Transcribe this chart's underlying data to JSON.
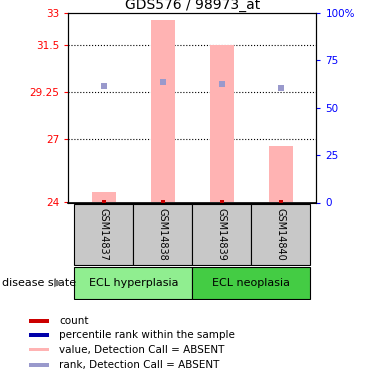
{
  "title": "GDS576 / 98973_at",
  "samples": [
    "GSM14837",
    "GSM14838",
    "GSM14839",
    "GSM14840"
  ],
  "ylim": [
    24,
    33
  ],
  "yticks": [
    24,
    27,
    29.25,
    31.5,
    33
  ],
  "ytick_labels": [
    "24",
    "27",
    "29.25",
    "31.5",
    "33"
  ],
  "y2ticks": [
    0,
    25,
    50,
    75,
    100
  ],
  "y2tick_labels": [
    "0",
    "25",
    "50",
    "75",
    "100%"
  ],
  "bar_values": [
    24.5,
    32.65,
    31.5,
    26.7
  ],
  "bar_base": 24,
  "bar_color": "#FFB3B3",
  "rank_values": [
    29.55,
    29.75,
    29.65,
    29.45
  ],
  "rank_color": "#9999CC",
  "count_color": "#CC0000",
  "groups": [
    {
      "label": "ECL hyperplasia",
      "samples": [
        0,
        1
      ],
      "color": "#90EE90"
    },
    {
      "label": "ECL neoplasia",
      "samples": [
        2,
        3
      ],
      "color": "#44CC44"
    }
  ],
  "disease_state_label": "disease state",
  "legend_colors": [
    "#CC0000",
    "#0000AA",
    "#FFB3B3",
    "#9999CC"
  ],
  "legend_labels": [
    "count",
    "percentile rank within the sample",
    "value, Detection Call = ABSENT",
    "rank, Detection Call = ABSENT"
  ],
  "bar_width": 0.4,
  "grid_yticks": [
    27,
    29.25,
    31.5
  ],
  "sample_box_color": "#C8C8C8",
  "plot_bg": "#ffffff"
}
